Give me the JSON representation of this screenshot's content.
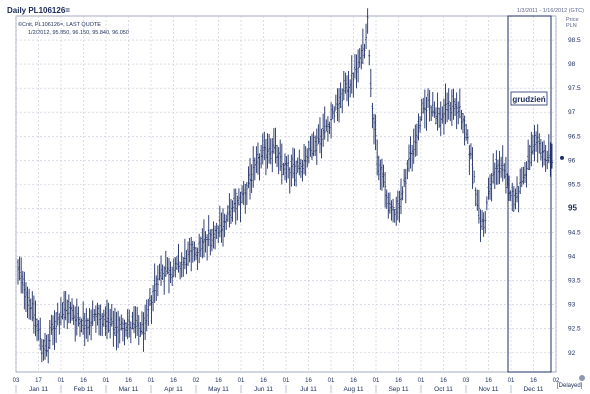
{
  "header": {
    "title": "Daily PL106126=",
    "date_range": "1/3/2011 - 1/16/2012 (GTC)",
    "legend_line1": "©Cnit, PL106126=, LAST QUOTE",
    "legend_line2": "1/2/2012, 95.850, 96.150, 95.840, 96.050",
    "price_label_1": "Price",
    "price_label_2": "PLN",
    "delayed_label": "[Delayed]"
  },
  "colors": {
    "bars": "#1f2f66",
    "grid": "#c5c9d8",
    "axis_text": "#1a2a57",
    "highlight_box_border": "#1f2f66",
    "current_price": "#1f2f66"
  },
  "chart_data": {
    "type": "ohlc",
    "title": "Daily PL106126=",
    "ylabel": "PLN",
    "ylim": [
      91.6,
      99.0
    ],
    "y_ticks": [
      "92",
      "92.5",
      "93",
      "93.5",
      "94",
      "94.5",
      "95",
      "95.5",
      "96",
      "96.5",
      "97",
      "97.5",
      "98",
      "98.5"
    ],
    "current_price_tick": "95",
    "x_tick_labels": [
      "03",
      "17",
      "01",
      "16",
      "01",
      "16",
      "01",
      "16",
      "02",
      "16",
      "01",
      "16",
      "01",
      "16",
      "01",
      "16",
      "01",
      "16",
      "01",
      "16",
      "03",
      "16",
      "01",
      "16",
      "02"
    ],
    "month_labels": [
      "Jan 11",
      "Feb 11",
      "Mar 11",
      "Apr 11",
      "May 11",
      "Jun 11",
      "Jul 11",
      "Aug 11",
      "Sep 11",
      "Oct 11",
      "Nov 11",
      "Dec 11"
    ],
    "annotation": "grudzień",
    "last_close": 96.05,
    "series_path": [
      [
        0,
        93.7
      ],
      [
        5,
        93.3
      ],
      [
        10,
        92.8
      ],
      [
        15,
        92.2
      ],
      [
        18,
        92.0
      ],
      [
        22,
        92.5
      ],
      [
        27,
        92.8
      ],
      [
        32,
        92.9
      ],
      [
        38,
        92.7
      ],
      [
        44,
        92.6
      ],
      [
        50,
        92.8
      ],
      [
        56,
        92.6
      ],
      [
        62,
        92.5
      ],
      [
        68,
        92.6
      ],
      [
        74,
        92.5
      ],
      [
        80,
        92.5
      ],
      [
        85,
        93.3
      ],
      [
        90,
        93.7
      ],
      [
        96,
        93.7
      ],
      [
        102,
        93.8
      ],
      [
        108,
        94.0
      ],
      [
        114,
        94.2
      ],
      [
        120,
        94.4
      ],
      [
        126,
        94.6
      ],
      [
        130,
        94.7
      ],
      [
        136,
        95.0
      ],
      [
        142,
        95.3
      ],
      [
        146,
        95.6
      ],
      [
        152,
        96.0
      ],
      [
        158,
        96.3
      ],
      [
        162,
        96.2
      ],
      [
        166,
        95.9
      ],
      [
        172,
        95.8
      ],
      [
        178,
        95.9
      ],
      [
        184,
        96.2
      ],
      [
        190,
        96.5
      ],
      [
        196,
        96.8
      ],
      [
        202,
        97.2
      ],
      [
        208,
        97.6
      ],
      [
        214,
        97.9
      ],
      [
        218,
        98.4
      ],
      [
        220,
        98.9
      ],
      [
        222,
        97.6
      ],
      [
        226,
        96.0
      ],
      [
        230,
        95.6
      ],
      [
        234,
        94.9
      ],
      [
        238,
        95.0
      ],
      [
        242,
        95.3
      ],
      [
        246,
        96.0
      ],
      [
        250,
        96.4
      ],
      [
        254,
        96.9
      ],
      [
        258,
        97.2
      ],
      [
        262,
        97.0
      ],
      [
        266,
        96.9
      ],
      [
        270,
        97.1
      ],
      [
        274,
        97.2
      ],
      [
        278,
        97.0
      ],
      [
        282,
        96.5
      ],
      [
        286,
        95.9
      ],
      [
        290,
        94.9
      ],
      [
        293,
        94.6
      ],
      [
        296,
        95.3
      ],
      [
        300,
        95.8
      ],
      [
        304,
        95.9
      ],
      [
        308,
        95.5
      ],
      [
        312,
        95.2
      ],
      [
        316,
        95.5
      ],
      [
        320,
        95.8
      ],
      [
        324,
        96.2
      ],
      [
        328,
        96.3
      ],
      [
        332,
        96.1
      ],
      [
        336,
        96.05
      ]
    ]
  }
}
